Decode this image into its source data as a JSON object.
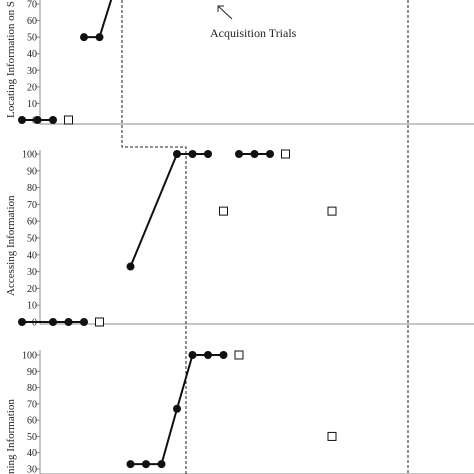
{
  "colors": {
    "axis": "#8c8c8c",
    "line": "#111111",
    "marker": "#111111",
    "open_marker_fill": "#ffffff",
    "phase_line": "#222222",
    "text": "#222222"
  },
  "annotation": {
    "text": "Acquisition Trials",
    "arrow": "arrow-up-left"
  },
  "chart_data": [
    {
      "type": "line",
      "panel": "top",
      "ylabel": "Locating Information on S",
      "yticks": [
        "0",
        "10",
        "20",
        "30",
        "40",
        "50",
        "60",
        "70"
      ],
      "ylim": [
        0,
        70
      ],
      "x": [
        1,
        2,
        3,
        4,
        5,
        6,
        7,
        8,
        9,
        10,
        11,
        12,
        13,
        14,
        15,
        16,
        17,
        18,
        19,
        20,
        21,
        22,
        23,
        24,
        25,
        26,
        27,
        28,
        29,
        30
      ],
      "series": [
        {
          "segment": "baseline",
          "points": [
            [
              1,
              0
            ],
            [
              2,
              0
            ],
            [
              3,
              0
            ]
          ]
        },
        {
          "segment": "acquisition",
          "points": [
            [
              5,
              50
            ],
            [
              6,
              50
            ],
            [
              7,
              80
            ]
          ]
        }
      ],
      "open_points": [
        [
          4,
          0
        ]
      ]
    },
    {
      "type": "line",
      "panel": "middle",
      "ylabel": "Accessing Information",
      "yticks": [
        "0",
        "10",
        "20",
        "30",
        "40",
        "50",
        "60",
        "70",
        "80",
        "90",
        "100"
      ],
      "ylim": [
        0,
        100
      ],
      "series": [
        {
          "segment": "baseline",
          "points": [
            [
              1,
              0
            ],
            [
              3,
              0
            ],
            [
              4,
              0
            ],
            [
              5,
              0
            ]
          ]
        },
        {
          "segment": "acquisition",
          "points": [
            [
              8,
              33
            ],
            [
              11,
              100
            ],
            [
              12,
              100
            ],
            [
              13,
              100
            ]
          ]
        },
        {
          "segment": "maintenance",
          "points": [
            [
              15,
              100
            ],
            [
              16,
              100
            ],
            [
              17,
              100
            ]
          ]
        }
      ],
      "open_points": [
        [
          6,
          0
        ],
        [
          14,
          66
        ],
        [
          18,
          100
        ],
        [
          21,
          66
        ]
      ]
    },
    {
      "type": "line",
      "panel": "bottom",
      "ylabel": "ning Information",
      "yticks": [
        "30",
        "40",
        "50",
        "60",
        "70",
        "80",
        "90",
        "100"
      ],
      "ylim": [
        30,
        100
      ],
      "series": [
        {
          "segment": "acquisition",
          "points": [
            [
              8,
              33
            ],
            [
              9,
              33
            ],
            [
              10,
              33
            ],
            [
              11,
              67
            ],
            [
              12,
              100
            ],
            [
              13,
              100
            ],
            [
              14,
              100
            ]
          ]
        }
      ],
      "open_points": [
        [
          15,
          100
        ],
        [
          21,
          50
        ]
      ]
    }
  ]
}
